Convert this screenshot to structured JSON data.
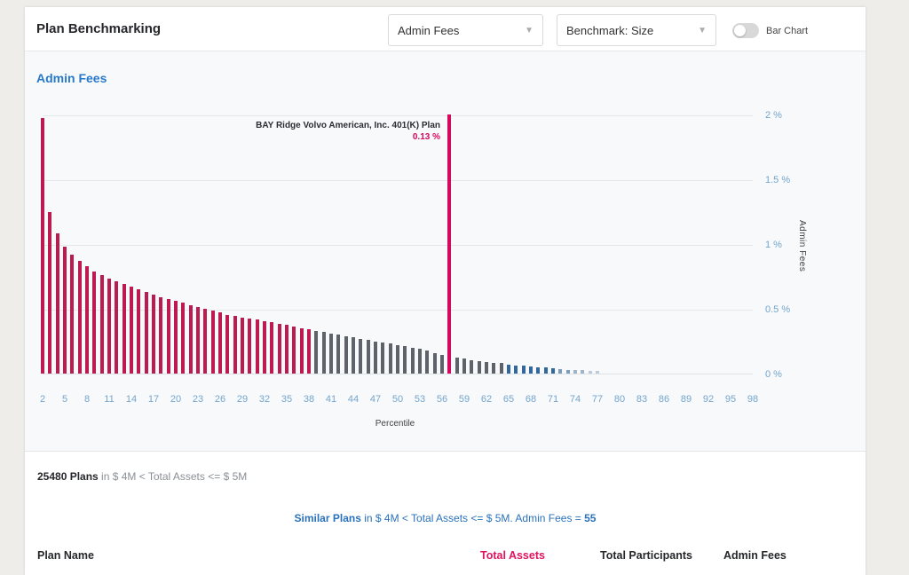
{
  "header": {
    "title": "Plan Benchmarking",
    "metric_dropdown": {
      "value": "Admin Fees"
    },
    "benchmark_dropdown": {
      "value": "Benchmark: Size"
    },
    "bar_chart_toggle": {
      "label": "Bar Chart",
      "state": "off"
    }
  },
  "chart_section": {
    "heading": "Admin Fees",
    "annotation": {
      "plan_name": "BAY Ridge Volvo American, Inc. 401(K) Plan",
      "plan_value": "0.13 %"
    }
  },
  "chart_data": {
    "type": "bar",
    "title": "Admin Fees",
    "xlabel": "Percentile",
    "ylabel": "Admin Fees",
    "ylim": [
      0,
      2
    ],
    "y_ticks": [
      "2 %",
      "1.5 %",
      "1 %",
      "0.5 %",
      "0 %"
    ],
    "x_ticks": [
      2,
      5,
      8,
      11,
      14,
      17,
      20,
      23,
      26,
      29,
      32,
      35,
      38,
      41,
      44,
      47,
      50,
      53,
      56,
      59,
      62,
      65,
      68,
      71,
      74,
      77,
      80,
      83,
      86,
      89,
      92,
      95,
      98
    ],
    "highlight": {
      "percentile": 57,
      "value_pct": 0.13
    },
    "colors": {
      "crimson": "#bd1a4f",
      "highlight": "#d6095f",
      "gray": "#5d6368",
      "blue": "#33689e",
      "fade1": "#7b9cba",
      "fade2": "#9fb5c7",
      "fade3": "#bccadb"
    },
    "bars": [
      {
        "p": 2,
        "v": 1.97,
        "c": "crimson"
      },
      {
        "p": 3,
        "v": 1.25,
        "c": "crimson"
      },
      {
        "p": 4,
        "v": 1.08,
        "c": "crimson"
      },
      {
        "p": 5,
        "v": 0.98,
        "c": "crimson"
      },
      {
        "p": 6,
        "v": 0.92,
        "c": "crimson"
      },
      {
        "p": 7,
        "v": 0.87,
        "c": "crimson"
      },
      {
        "p": 8,
        "v": 0.83,
        "c": "crimson"
      },
      {
        "p": 9,
        "v": 0.79,
        "c": "crimson"
      },
      {
        "p": 10,
        "v": 0.76,
        "c": "crimson"
      },
      {
        "p": 11,
        "v": 0.73,
        "c": "crimson"
      },
      {
        "p": 12,
        "v": 0.71,
        "c": "crimson"
      },
      {
        "p": 13,
        "v": 0.69,
        "c": "crimson"
      },
      {
        "p": 14,
        "v": 0.67,
        "c": "crimson"
      },
      {
        "p": 15,
        "v": 0.65,
        "c": "crimson"
      },
      {
        "p": 16,
        "v": 0.63,
        "c": "crimson"
      },
      {
        "p": 17,
        "v": 0.61,
        "c": "crimson"
      },
      {
        "p": 18,
        "v": 0.59,
        "c": "crimson"
      },
      {
        "p": 19,
        "v": 0.575,
        "c": "crimson"
      },
      {
        "p": 20,
        "v": 0.56,
        "c": "crimson"
      },
      {
        "p": 21,
        "v": 0.545,
        "c": "crimson"
      },
      {
        "p": 22,
        "v": 0.53,
        "c": "crimson"
      },
      {
        "p": 23,
        "v": 0.515,
        "c": "crimson"
      },
      {
        "p": 24,
        "v": 0.5,
        "c": "crimson"
      },
      {
        "p": 25,
        "v": 0.485,
        "c": "crimson"
      },
      {
        "p": 26,
        "v": 0.47,
        "c": "crimson"
      },
      {
        "p": 27,
        "v": 0.455,
        "c": "crimson"
      },
      {
        "p": 28,
        "v": 0.445,
        "c": "crimson"
      },
      {
        "p": 29,
        "v": 0.435,
        "c": "crimson"
      },
      {
        "p": 30,
        "v": 0.425,
        "c": "crimson"
      },
      {
        "p": 31,
        "v": 0.415,
        "c": "crimson"
      },
      {
        "p": 32,
        "v": 0.405,
        "c": "crimson"
      },
      {
        "p": 33,
        "v": 0.395,
        "c": "crimson"
      },
      {
        "p": 34,
        "v": 0.385,
        "c": "crimson"
      },
      {
        "p": 35,
        "v": 0.375,
        "c": "crimson"
      },
      {
        "p": 36,
        "v": 0.365,
        "c": "crimson"
      },
      {
        "p": 37,
        "v": 0.35,
        "c": "crimson"
      },
      {
        "p": 38,
        "v": 0.34,
        "c": "crimson"
      },
      {
        "p": 39,
        "v": 0.33,
        "c": "gray"
      },
      {
        "p": 40,
        "v": 0.32,
        "c": "gray"
      },
      {
        "p": 41,
        "v": 0.31,
        "c": "gray"
      },
      {
        "p": 42,
        "v": 0.3,
        "c": "gray"
      },
      {
        "p": 43,
        "v": 0.29,
        "c": "gray"
      },
      {
        "p": 44,
        "v": 0.28,
        "c": "gray"
      },
      {
        "p": 45,
        "v": 0.27,
        "c": "gray"
      },
      {
        "p": 46,
        "v": 0.26,
        "c": "gray"
      },
      {
        "p": 47,
        "v": 0.25,
        "c": "gray"
      },
      {
        "p": 48,
        "v": 0.24,
        "c": "gray"
      },
      {
        "p": 49,
        "v": 0.23,
        "c": "gray"
      },
      {
        "p": 50,
        "v": 0.22,
        "c": "gray"
      },
      {
        "p": 51,
        "v": 0.21,
        "c": "gray"
      },
      {
        "p": 52,
        "v": 0.2,
        "c": "gray"
      },
      {
        "p": 53,
        "v": 0.19,
        "c": "gray"
      },
      {
        "p": 54,
        "v": 0.175,
        "c": "gray"
      },
      {
        "p": 55,
        "v": 0.16,
        "c": "gray"
      },
      {
        "p": 56,
        "v": 0.145,
        "c": "gray"
      },
      {
        "p": 57,
        "v": 2.0,
        "c": "highlight"
      },
      {
        "p": 58,
        "v": 0.125,
        "c": "gray"
      },
      {
        "p": 59,
        "v": 0.115,
        "c": "gray"
      },
      {
        "p": 60,
        "v": 0.105,
        "c": "gray"
      },
      {
        "p": 61,
        "v": 0.095,
        "c": "gray"
      },
      {
        "p": 62,
        "v": 0.09,
        "c": "gray"
      },
      {
        "p": 63,
        "v": 0.085,
        "c": "gray"
      },
      {
        "p": 64,
        "v": 0.08,
        "c": "gray"
      },
      {
        "p": 65,
        "v": 0.07,
        "c": "blue"
      },
      {
        "p": 66,
        "v": 0.065,
        "c": "blue"
      },
      {
        "p": 67,
        "v": 0.06,
        "c": "blue"
      },
      {
        "p": 68,
        "v": 0.055,
        "c": "blue"
      },
      {
        "p": 69,
        "v": 0.05,
        "c": "blue"
      },
      {
        "p": 70,
        "v": 0.045,
        "c": "blue"
      },
      {
        "p": 71,
        "v": 0.04,
        "c": "blue"
      },
      {
        "p": 72,
        "v": 0.035,
        "c": "fade1"
      },
      {
        "p": 73,
        "v": 0.03,
        "c": "fade1"
      },
      {
        "p": 74,
        "v": 0.028,
        "c": "fade2"
      },
      {
        "p": 75,
        "v": 0.025,
        "c": "fade2"
      },
      {
        "p": 76,
        "v": 0.022,
        "c": "fade3"
      },
      {
        "p": 77,
        "v": 0.02,
        "c": "fade3"
      }
    ]
  },
  "summary": {
    "plans_count": "25480 Plans",
    "plans_rest": " in $ 4M < Total Assets <= $ 5M",
    "similar_bold": "Similar Plans",
    "similar_rest": " in $ 4M < Total Assets <= $ 5M. Admin Fees = ",
    "similar_value": "55"
  },
  "table": {
    "columns": [
      "Plan Name",
      "Total Assets",
      "Total Participants",
      "Admin Fees"
    ]
  }
}
